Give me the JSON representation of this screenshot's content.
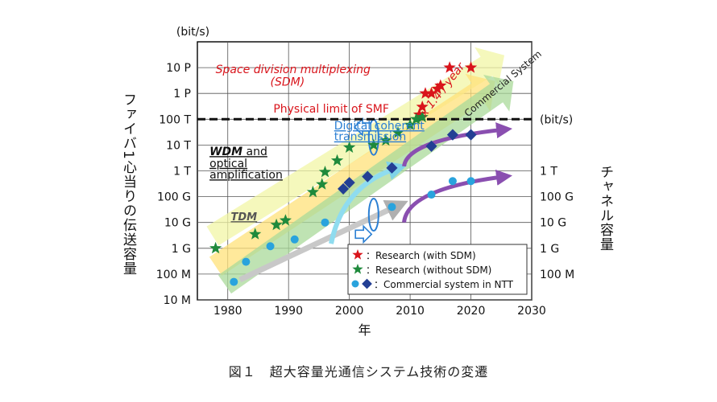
{
  "caption": "図１　超大容量光通信システム技術の変遷",
  "chart_data": {
    "type": "scatter",
    "xlabel": "年",
    "ylabel": "ファイバ1心当りの伝送容量",
    "y2label": "チャネル容量",
    "y_unit": "(bit/s)",
    "y2_unit": "(bit/s)",
    "xlim": [
      1975,
      2030
    ],
    "x_ticks": [
      1980,
      1990,
      2000,
      2010,
      2020,
      2030
    ],
    "y_scale": "log",
    "ylim": [
      10000000,
      100000000000000000
    ],
    "y_ticks": [
      {
        "value": 10000000,
        "label": "10 M"
      },
      {
        "value": 100000000,
        "label": "100 M"
      },
      {
        "value": 1000000000,
        "label": "1 G"
      },
      {
        "value": 10000000000,
        "label": "10 G"
      },
      {
        "value": 100000000000,
        "label": "100 G"
      },
      {
        "value": 1000000000000,
        "label": "1 T"
      },
      {
        "value": 10000000000000,
        "label": "10 T"
      },
      {
        "value": 100000000000000,
        "label": "100 T"
      },
      {
        "value": 1000000000000000,
        "label": "1 P"
      },
      {
        "value": 10000000000000000,
        "label": "10 P"
      }
    ],
    "y2_ticks": [
      {
        "value": 100000000,
        "label": "100 M"
      },
      {
        "value": 1000000000,
        "label": "1 G"
      },
      {
        "value": 10000000000,
        "label": "10 G"
      },
      {
        "value": 100000000000,
        "label": "100 G"
      },
      {
        "value": 1000000000000,
        "label": "1 T"
      }
    ],
    "grid": true,
    "limit_line": {
      "value": 100000000000000,
      "label": "Physical limit of SMF"
    },
    "legend_position": "bottom-right",
    "series": [
      {
        "name": "Research (with SDM)",
        "marker": "star",
        "color": "#d9141b",
        "points": [
          [
            2011.5,
            150000000000000
          ],
          [
            2012,
            300000000000000
          ],
          [
            2012.5,
            1000000000000000
          ],
          [
            2013.5,
            1000000000000000
          ],
          [
            2015,
            2000000000000000
          ],
          [
            2016.5,
            10000000000000000
          ],
          [
            2020,
            10000000000000000
          ],
          [
            2014.5,
            1500000000000000
          ]
        ]
      },
      {
        "name": "Research (without SDM)",
        "marker": "star",
        "color": "#1f8a3c",
        "points": [
          [
            1978,
            1000000000
          ],
          [
            1984.5,
            3500000000
          ],
          [
            1988,
            8000000000
          ],
          [
            1989.5,
            12000000000
          ],
          [
            1994,
            150000000000
          ],
          [
            1995.5,
            300000000000
          ],
          [
            1996,
            900000000000
          ],
          [
            1998,
            2500000000000
          ],
          [
            2000,
            8000000000000
          ],
          [
            2004,
            10000000000000
          ],
          [
            2006,
            15000000000000
          ],
          [
            2008,
            30000000000000
          ],
          [
            2010,
            60000000000000
          ],
          [
            2011,
            100000000000000
          ],
          [
            2012,
            120000000000000
          ]
        ]
      },
      {
        "name": "Commercial system in NTT",
        "marker": "circle",
        "color": "#29a3dd",
        "points": [
          [
            1981,
            50000000
          ],
          [
            1983,
            300000000
          ],
          [
            1987,
            1200000000
          ],
          [
            1991,
            2200000000
          ],
          [
            1996,
            10000000000
          ],
          [
            2007,
            40000000000
          ],
          [
            2013.5,
            120000000000
          ],
          [
            2017,
            400000000000
          ],
          [
            2020,
            400000000000
          ]
        ]
      },
      {
        "name": "Commercial system in NTT",
        "marker": "diamond",
        "color": "#233f94",
        "points": [
          [
            1999,
            200000000000
          ],
          [
            2000,
            350000000000
          ],
          [
            2003,
            600000000000
          ],
          [
            2007,
            1300000000000
          ],
          [
            2013.5,
            9000000000000
          ],
          [
            2017,
            25000000000000
          ],
          [
            2020,
            25000000000000
          ]
        ]
      }
    ],
    "legend": [
      {
        "marker": "red-star",
        "text": "：Research (with SDM)"
      },
      {
        "marker": "green-star",
        "text": "：Research (without SDM)"
      },
      {
        "marker": "circle-diamond",
        "text": "：Commercial system in NTT"
      }
    ],
    "annotations": {
      "sdm_line1": "Space division multiplexing",
      "sdm_line2": "(SDM)",
      "physical_limit": "Physical limit of SMF",
      "digital_line1": "Digital coherent",
      "digital_line2": "transmission",
      "wdm_line1": "WDM",
      "wdm_line1b": " and",
      "wdm_line2": "optical",
      "wdm_line3": "amplification",
      "tdm": "TDM",
      "growth": "x 1.4 / year",
      "commercial": "Commercial System"
    }
  }
}
